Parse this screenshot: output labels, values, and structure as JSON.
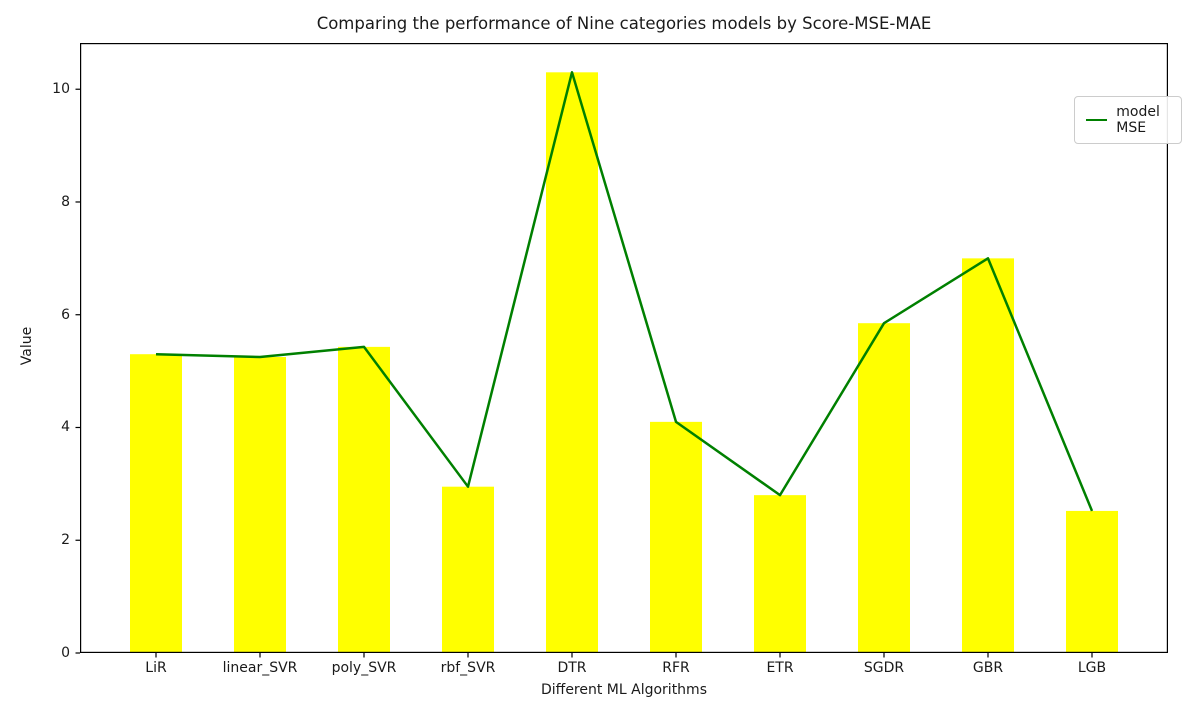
{
  "chart_data": {
    "type": "bar",
    "title": "Comparing the performance of Nine categories models by Score-MSE-MAE",
    "xlabel": "Different ML Algorithms",
    "ylabel": "Value",
    "categories": [
      "LiR",
      "linear_SVR",
      "poly_SVR",
      "rbf_SVR",
      "DTR",
      "RFR",
      "ETR",
      "SGDR",
      "GBR",
      "LGB"
    ],
    "series": [
      {
        "name": "model MSE bars",
        "type": "bar",
        "color": "#ffff00",
        "values": [
          5.3,
          5.25,
          5.43,
          2.95,
          10.3,
          4.1,
          2.8,
          5.85,
          7.0,
          2.52
        ]
      },
      {
        "name": "model MSE",
        "type": "line",
        "color": "#008000",
        "values": [
          5.3,
          5.25,
          5.43,
          2.95,
          10.3,
          4.1,
          2.8,
          5.85,
          7.0,
          2.52
        ]
      }
    ],
    "legend": {
      "position": "upper right",
      "entries": [
        {
          "label": "model MSE",
          "color": "#008000",
          "marker": "line"
        }
      ]
    },
    "ylim": [
      0,
      10.82
    ],
    "yticks": [
      0,
      2,
      4,
      6,
      8,
      10
    ],
    "grid": false
  },
  "colors": {
    "bar": "#ffff00",
    "line": "#008000",
    "background": "#ffffff",
    "axis": "#000000",
    "text": "#1a1a1a"
  }
}
